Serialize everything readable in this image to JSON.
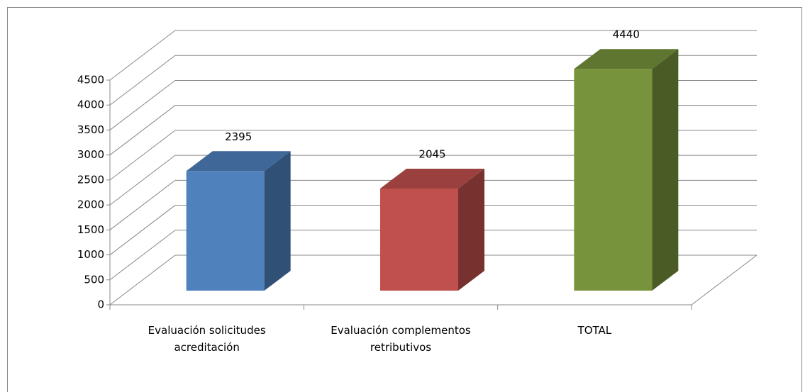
{
  "chart_data": {
    "type": "bar3d",
    "categories": [
      "Evaluación solicitudes acreditación",
      "Evaluación complementos retributivos",
      "TOTAL"
    ],
    "values": [
      2395,
      2045,
      4440
    ],
    "colors": [
      "#4f81bd",
      "#c0504d",
      "#77933c"
    ],
    "ylim": [
      0,
      4500
    ],
    "yticks": [
      0,
      500,
      1000,
      1500,
      2000,
      2500,
      3000,
      3500,
      4000,
      4500
    ],
    "grid": true
  }
}
